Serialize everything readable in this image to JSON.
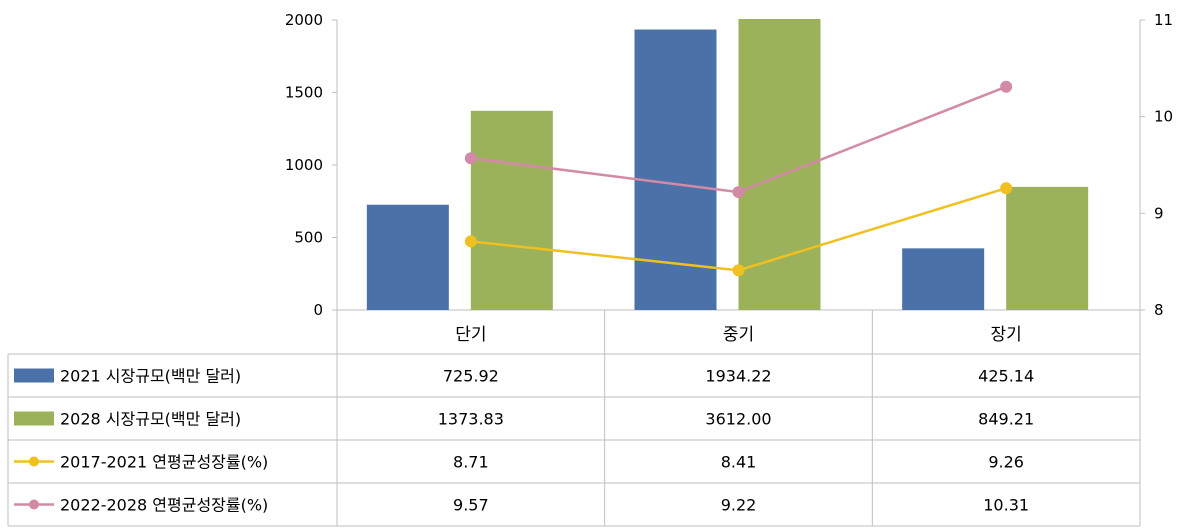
{
  "chart_data": {
    "type": "bar",
    "categories": [
      "단기",
      "중기",
      "장기"
    ],
    "bar_series": [
      {
        "name": "2021 시장규모(백만 달러)",
        "values": [
          725.92,
          1934.22,
          425.14
        ],
        "color": "#4A72A8"
      },
      {
        "name": "2028 시장규모(백만 달러)",
        "values": [
          1373.83,
          3612.0,
          849.21
        ],
        "color": "#9BB25A"
      }
    ],
    "line_series": [
      {
        "name": "2017-2021  연평균성장률(%)",
        "values": [
          8.71,
          8.41,
          9.26
        ],
        "color": "#F0C020"
      },
      {
        "name": "2022-2028  연평균성장률(%)",
        "values": [
          9.57,
          9.22,
          10.31
        ],
        "color": "#D38AA6"
      }
    ],
    "table_values": [
      [
        "725.92",
        "1934.22",
        "425.14"
      ],
      [
        "1373.83",
        "3612.00",
        "849.21"
      ],
      [
        "8.71",
        "8.41",
        "9.26"
      ],
      [
        "9.57",
        "9.22",
        "10.31"
      ]
    ],
    "y_left": {
      "min": 0,
      "max": 2000,
      "ticks": [
        "0",
        "500",
        "1000",
        "1500",
        "2000"
      ]
    },
    "y_right": {
      "min": 8,
      "max": 11,
      "ticks": [
        "8",
        "9",
        "10",
        "11"
      ]
    },
    "grid": false,
    "legend": "data-table"
  }
}
